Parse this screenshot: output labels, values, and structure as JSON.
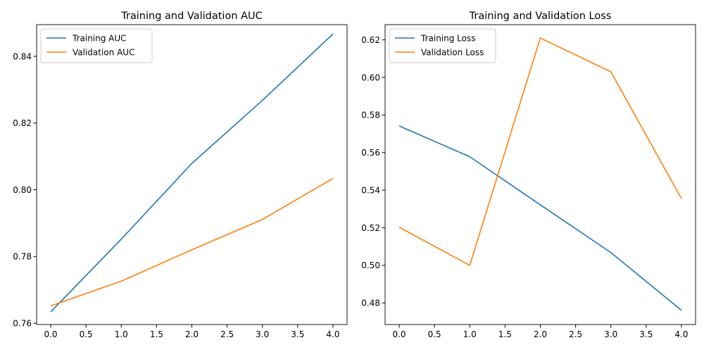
{
  "chart_data": [
    {
      "type": "line",
      "title": "Training and Validation AUC",
      "xlabel": "",
      "ylabel": "",
      "xlim": [
        -0.2,
        4.2
      ],
      "ylim": [
        0.7596,
        0.8495
      ],
      "xticks": [
        0.0,
        0.5,
        1.0,
        1.5,
        2.0,
        2.5,
        3.0,
        3.5,
        4.0
      ],
      "xtick_labels": [
        "0.0",
        "0.5",
        "1.0",
        "1.5",
        "2.0",
        "2.5",
        "3.0",
        "3.5",
        "4.0"
      ],
      "yticks": [
        0.76,
        0.78,
        0.8,
        0.82,
        0.84
      ],
      "ytick_labels": [
        "0.76",
        "0.78",
        "0.80",
        "0.82",
        "0.84"
      ],
      "grid": false,
      "legend_position": "top-left",
      "x": [
        0,
        1,
        2,
        3,
        4
      ],
      "series": [
        {
          "name": "Training AUC",
          "color": "#1f77b4",
          "values": [
            0.7634,
            0.7852,
            0.8079,
            0.8268,
            0.8467
          ]
        },
        {
          "name": "Validation AUC",
          "color": "#ff7f0e",
          "values": [
            0.7652,
            0.7726,
            0.782,
            0.7911,
            0.8034
          ]
        }
      ]
    },
    {
      "type": "line",
      "title": "Training and Validation Loss",
      "xlabel": "",
      "ylabel": "",
      "xlim": [
        -0.2,
        4.2
      ],
      "ylim": [
        0.4685,
        0.6281
      ],
      "xticks": [
        0.0,
        0.5,
        1.0,
        1.5,
        2.0,
        2.5,
        3.0,
        3.5,
        4.0
      ],
      "xtick_labels": [
        "0.0",
        "0.5",
        "1.0",
        "1.5",
        "2.0",
        "2.5",
        "3.0",
        "3.5",
        "4.0"
      ],
      "yticks": [
        0.48,
        0.5,
        0.52,
        0.54,
        0.56,
        0.58,
        0.6,
        0.62
      ],
      "ytick_labels": [
        "0.48",
        "0.50",
        "0.52",
        "0.54",
        "0.56",
        "0.58",
        "0.60",
        "0.62"
      ],
      "grid": false,
      "legend_position": "top-left",
      "x": [
        0,
        1,
        2,
        3,
        4
      ],
      "series": [
        {
          "name": "Training Loss",
          "color": "#1f77b4",
          "values": [
            0.5742,
            0.5578,
            0.5322,
            0.5068,
            0.4761
          ]
        },
        {
          "name": "Validation Loss",
          "color": "#ff7f0e",
          "values": [
            0.5203,
            0.5,
            0.621,
            0.603,
            0.5355
          ]
        }
      ]
    }
  ]
}
